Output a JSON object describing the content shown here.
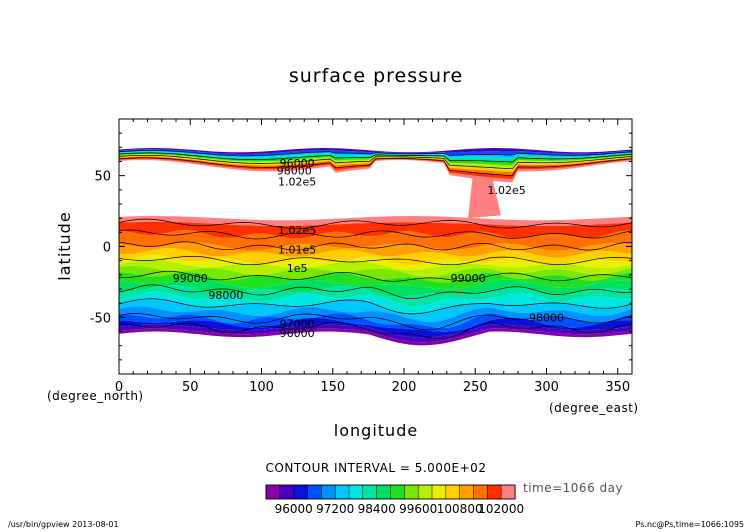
{
  "chart_data": {
    "type": "contour",
    "title": "surface pressure",
    "xlabel": "longitude",
    "ylabel": "latitude",
    "x_unit": "(degree_east)",
    "y_unit": "(degree_north)",
    "xlim": [
      0,
      360
    ],
    "ylim": [
      -90,
      90
    ],
    "x_ticks": [
      "0",
      "50",
      "100",
      "150",
      "200",
      "250",
      "300",
      "350"
    ],
    "y_ticks": [
      "50",
      "0",
      "-50"
    ],
    "contour_interval_text": "CONTOUR INTERVAL = 5.000E+02",
    "time_text": "time=1066 day",
    "contour_labels": [
      {
        "text": "96000",
        "lon": 125,
        "lat": 56
      },
      {
        "text": "98000",
        "lon": 123,
        "lat": 51
      },
      {
        "text": "1.02e5",
        "lon": 125,
        "lat": 43
      },
      {
        "text": "1.02e5",
        "lon": 272,
        "lat": 37
      },
      {
        "text": "1.02e5",
        "lon": 125,
        "lat": 9
      },
      {
        "text": "1.01e5",
        "lon": 125,
        "lat": -5
      },
      {
        "text": "1e5",
        "lon": 125,
        "lat": -18
      },
      {
        "text": "99000",
        "lon": 50,
        "lat": -25
      },
      {
        "text": "98000",
        "lon": 75,
        "lat": -37
      },
      {
        "text": "99000",
        "lon": 245,
        "lat": -25
      },
      {
        "text": "97000",
        "lon": 125,
        "lat": -57
      },
      {
        "text": "96000",
        "lon": 125,
        "lat": -64
      },
      {
        "text": "98000",
        "lon": 300,
        "lat": -53
      }
    ],
    "colorbar": {
      "tick_labels": [
        "96000",
        "97200",
        "98400",
        "99600",
        "100800",
        "102000"
      ],
      "levels": [
        95600,
        96000,
        96400,
        96800,
        97200,
        97600,
        98000,
        98400,
        98800,
        99200,
        99600,
        100000,
        100400,
        100800,
        101200,
        101600,
        102000,
        102400
      ],
      "colors": [
        "#8a00a8",
        "#4a00c0",
        "#0a10d8",
        "#0050ff",
        "#0090ff",
        "#00c8ff",
        "#00e6e0",
        "#00e6a0",
        "#00e060",
        "#20e020",
        "#78e800",
        "#b4f000",
        "#ecf000",
        "#ffd000",
        "#ffa000",
        "#ff7000",
        "#ff3000",
        "#ff8080"
      ]
    },
    "bands": {
      "north_cap": {
        "lat_top": 68,
        "lat_bottom": 45
      },
      "tropics": {
        "lat_top": 20,
        "lat_bottom": 3
      },
      "south_mid": {
        "lat_top": 3,
        "lat_bottom": -62
      }
    }
  },
  "footer": {
    "left": "/usr/bin/gpview  2013-08-01",
    "right": "Ps.nc@Ps,time=1066:1095"
  }
}
